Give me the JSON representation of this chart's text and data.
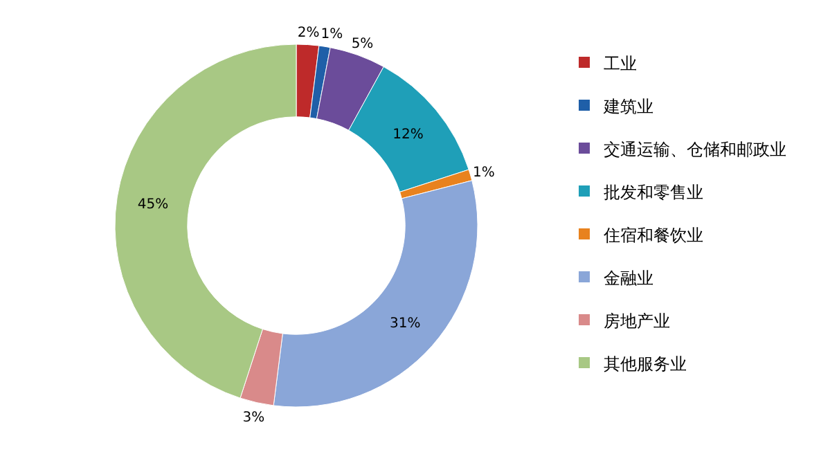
{
  "chart_data": {
    "type": "donut",
    "categories": [
      "工业",
      "建筑业",
      "交通运输、仓储和邮政业",
      "批发和零售业",
      "住宿和餐饮业",
      "金融业",
      "房地产业",
      "其他服务业"
    ],
    "values": [
      2,
      1,
      5,
      12,
      1,
      31,
      3,
      45
    ],
    "colors": [
      "#be2a2a",
      "#1f5fa8",
      "#6b4c9a",
      "#1f9fb8",
      "#e8821e",
      "#8aa6d8",
      "#d98a8a",
      "#a8c884"
    ],
    "value_labels": [
      "2%",
      "1%",
      "5%",
      "12%",
      "1%",
      "31%",
      "3%",
      "45%"
    ],
    "legend": "right"
  }
}
